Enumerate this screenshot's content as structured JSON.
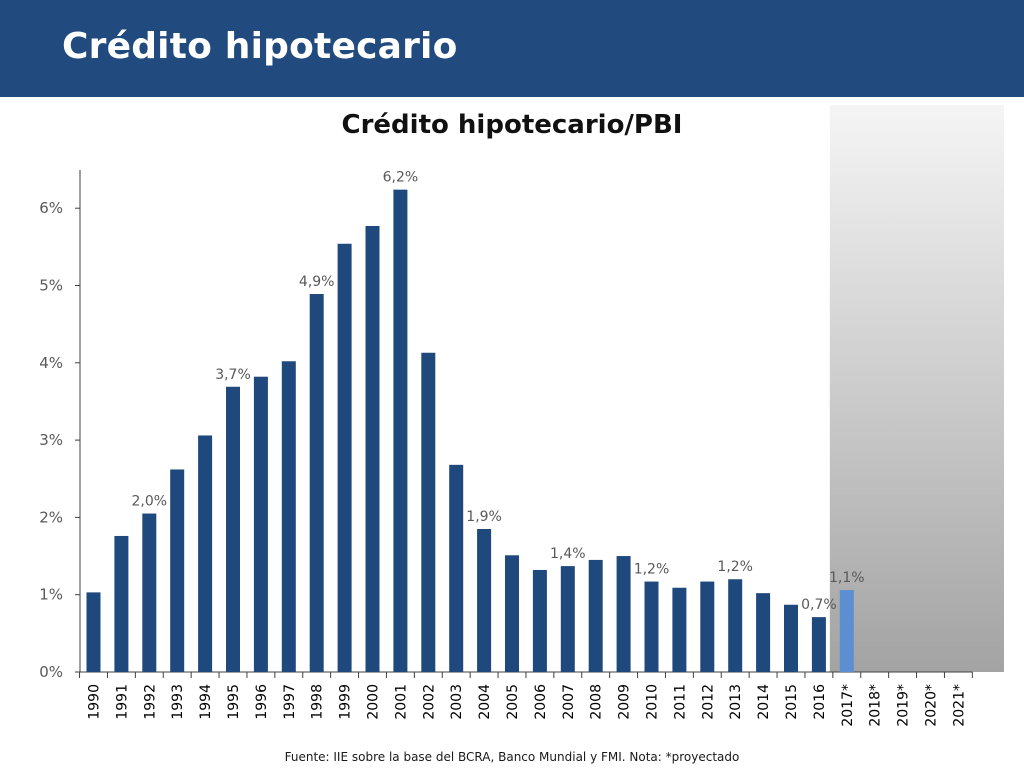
{
  "slide": {
    "title": "Crédito hipotecario",
    "source": "Fuente: IIE sobre la base del BCRA, Banco Mundial y FMI. Nota: *proyectado",
    "header_color": "#214a7e"
  },
  "chart_data": {
    "type": "bar",
    "title": "Crédito hipotecario/PBI",
    "xlabel": "",
    "ylabel": "",
    "ylim": [
      0,
      6.5
    ],
    "yticks": [
      "0%",
      "1%",
      "2%",
      "3%",
      "4%",
      "5%",
      "6%"
    ],
    "grid": false,
    "categories": [
      "1990",
      "1991",
      "1992",
      "1993",
      "1994",
      "1995",
      "1996",
      "1997",
      "1998",
      "1999",
      "2000",
      "2001",
      "2002",
      "2003",
      "2004",
      "2005",
      "2006",
      "2007",
      "2008",
      "2009",
      "2010",
      "2011",
      "2012",
      "2013",
      "2014",
      "2015",
      "2016",
      "2017*",
      "2018*",
      "2019*",
      "2020*",
      "2021*"
    ],
    "values": [
      1.03,
      1.76,
      2.05,
      2.62,
      3.06,
      3.69,
      3.82,
      4.02,
      4.89,
      5.54,
      5.77,
      6.24,
      4.13,
      2.68,
      1.85,
      1.51,
      1.32,
      1.37,
      1.45,
      1.5,
      1.17,
      1.09,
      1.17,
      1.2,
      1.02,
      0.87,
      0.71,
      1.06,
      null,
      null,
      null,
      null
    ],
    "data_labels": {
      "1992": "2,0%",
      "1995": "3,7%",
      "1998": "4,9%",
      "2001": "6,2%",
      "2004": "1,9%",
      "2007": "1,4%",
      "2010": "1,2%",
      "2013": "1,2%",
      "2016": "0,7%",
      "2017*": "1,1%"
    },
    "projected_from": "2017*",
    "colors": {
      "actual": "#1f497d",
      "projected": "#5b8fd0",
      "shade_top": "#f5f5f5",
      "shade_bottom": "#a3a3a3"
    }
  }
}
